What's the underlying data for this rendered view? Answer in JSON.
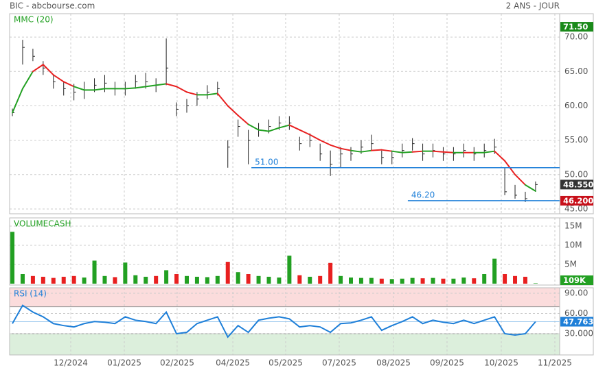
{
  "header": {
    "source": "BIC - abcbourse.com",
    "period": "2 ANS - JOUR"
  },
  "xaxis": {
    "xlim": [
      -0.27,
      53.35
    ],
    "xticks": [
      {
        "value": 5.69,
        "label": "12/2024"
      },
      {
        "value": 10.91,
        "label": "01/2025"
      },
      {
        "value": 16.06,
        "label": "02/2025"
      },
      {
        "value": 21.49,
        "label": "04/2025"
      },
      {
        "value": 26.64,
        "label": "05/2025"
      },
      {
        "value": 31.86,
        "label": "07/2025"
      },
      {
        "value": 37.15,
        "label": "08/2025"
      },
      {
        "value": 42.37,
        "label": "09/2025"
      },
      {
        "value": 47.66,
        "label": "10/2025"
      },
      {
        "value": 52.88,
        "label": "11/2025"
      }
    ]
  },
  "chart_data": [
    {
      "type": "ohlc",
      "color": "#222222",
      "grid": true,
      "ylim": [
        44.3,
        73.4
      ],
      "yticks": [
        {
          "value": 70,
          "label": "70.00"
        },
        {
          "value": 65,
          "label": "65.00"
        },
        {
          "value": 60,
          "label": "60.00"
        },
        {
          "value": 55,
          "label": "55.00"
        },
        {
          "value": 50,
          "label": "50.00"
        },
        {
          "value": 45,
          "label": "45.00"
        }
      ],
      "highs": [
        59.6,
        69.6,
        68.3,
        66.5,
        64.5,
        63.5,
        63.2,
        63.5,
        64.0,
        64.5,
        63.5,
        63.5,
        64.5,
        64.8,
        64.0,
        69.8,
        60.5,
        61.0,
        62.0,
        63.0,
        63.5,
        55.0,
        58.0,
        56.5,
        57.5,
        58.0,
        58.5,
        58.5,
        55.5,
        56.0,
        54.5,
        53.5,
        54.0,
        54.0,
        55.0,
        55.8,
        53.5,
        53.5,
        54.5,
        55.3,
        54.5,
        54.5,
        54.0,
        54.0,
        54.5,
        54.0,
        54.5,
        55.2,
        51.0,
        48.5,
        47.5,
        49.0
      ],
      "lows": [
        58.5,
        66.0,
        66.5,
        64.5,
        62.5,
        61.5,
        60.8,
        61.0,
        62.0,
        62.0,
        61.5,
        61.5,
        62.5,
        62.5,
        62.0,
        63.0,
        58.5,
        59.0,
        60.0,
        61.0,
        61.5,
        51.0,
        55.5,
        51.5,
        55.5,
        56.0,
        56.5,
        56.5,
        53.5,
        54.0,
        52.0,
        49.8,
        51.0,
        52.0,
        53.0,
        53.5,
        51.5,
        51.5,
        52.5,
        53.5,
        52.0,
        52.5,
        52.0,
        52.0,
        52.5,
        52.0,
        52.5,
        53.0,
        47.0,
        46.5,
        46.0,
        47.5
      ],
      "closes": [
        59.0,
        68.5,
        67.2,
        65.5,
        63.5,
        62.5,
        62.0,
        62.3,
        63.0,
        63.3,
        62.5,
        62.5,
        63.5,
        63.5,
        63.0,
        65.5,
        59.5,
        60.0,
        61.0,
        62.0,
        62.5,
        54.0,
        57.0,
        55.0,
        56.5,
        57.0,
        57.5,
        57.5,
        54.5,
        55.0,
        53.0,
        51.5,
        53.0,
        53.0,
        54.0,
        54.5,
        52.5,
        52.5,
        53.5,
        54.5,
        53.0,
        53.5,
        53.0,
        53.0,
        53.5,
        53.0,
        53.5,
        54.0,
        47.5,
        47.0,
        46.5,
        48.55
      ],
      "value_labels": [
        null,
        null,
        null,
        null,
        null,
        null,
        null,
        null,
        null,
        null,
        null,
        null,
        null,
        null,
        null,
        null,
        null,
        null,
        null,
        null,
        null,
        null,
        null,
        null,
        null,
        null,
        null,
        null,
        null,
        null,
        null,
        null,
        null,
        null,
        null,
        null,
        null,
        null,
        null,
        null,
        null,
        null,
        null,
        null,
        null,
        null,
        null,
        null,
        null,
        null,
        null,
        "48.550"
      ],
      "series": [
        {
          "name": "MMC (20)",
          "color_up": "#22a022",
          "color_down": "#e82020",
          "values": [
            59.0,
            62.5,
            65.0,
            66.0,
            64.5,
            63.5,
            62.8,
            62.3,
            62.3,
            62.5,
            62.5,
            62.5,
            62.6,
            62.8,
            63.0,
            63.2,
            62.8,
            62.0,
            61.6,
            61.6,
            61.8,
            60.0,
            58.6,
            57.3,
            56.5,
            56.3,
            56.8,
            57.2,
            56.5,
            55.8,
            55.0,
            54.3,
            53.8,
            53.5,
            53.3,
            53.5,
            53.6,
            53.4,
            53.2,
            53.3,
            53.4,
            53.4,
            53.3,
            53.2,
            53.2,
            53.2,
            53.2,
            53.4,
            52.0,
            50.0,
            48.5,
            47.6
          ]
        }
      ],
      "hlines": [
        {
          "value": 51.0,
          "label": "51.00",
          "x_start": 23.3,
          "color": "#1e7fd8"
        },
        {
          "value": 46.2,
          "label": "46.20",
          "axis_label": "46.200",
          "x_start": 38.55,
          "color": "#1e7fd8"
        }
      ],
      "markers": [
        {
          "value": 71.5,
          "label": "71.50",
          "color": "#1a8a1a"
        }
      ]
    },
    {
      "type": "bar",
      "ylim": [
        0,
        17140000
      ],
      "yticks": [
        {
          "value": 15000000,
          "label": "15M"
        },
        {
          "value": 10000000,
          "label": "10M"
        },
        {
          "value": 5000000,
          "label": "5M"
        }
      ],
      "series": [
        {
          "name": "VOLUMECASH",
          "color_up": "#22a022",
          "color_down": "#e82020",
          "values": [
            13500000,
            2500000,
            2000000,
            1800000,
            1500000,
            1800000,
            2000000,
            1600000,
            6000000,
            2000000,
            1700000,
            5500000,
            2200000,
            1800000,
            2000000,
            3500000,
            2500000,
            2000000,
            1800000,
            1700000,
            2000000,
            5700000,
            3000000,
            2500000,
            2000000,
            1800000,
            1600000,
            7300000,
            2200000,
            1800000,
            2000000,
            5400000,
            2000000,
            1600000,
            1500000,
            1500000,
            1300000,
            1200000,
            1300000,
            1500000,
            1400000,
            1500000,
            1300000,
            1300000,
            1600000,
            1400000,
            2500000,
            6500000,
            2500000,
            2000000,
            1800000,
            109000
          ],
          "value_labels": [
            null,
            null,
            null,
            null,
            null,
            null,
            null,
            null,
            null,
            null,
            null,
            null,
            null,
            null,
            null,
            null,
            null,
            null,
            null,
            null,
            null,
            null,
            null,
            null,
            null,
            null,
            null,
            null,
            null,
            null,
            null,
            null,
            null,
            null,
            null,
            null,
            null,
            null,
            null,
            null,
            null,
            null,
            null,
            null,
            null,
            null,
            null,
            null,
            null,
            null,
            null,
            "109K"
          ]
        }
      ]
    },
    {
      "type": "line",
      "ylim": [
        -1.5,
        98.1
      ],
      "overbought": 70,
      "oversold": 30,
      "yticks": [
        {
          "value": 90,
          "label": "90.00"
        },
        {
          "value": 60,
          "label": "60.00"
        },
        {
          "value": 30,
          "label": "30.000"
        }
      ],
      "series": [
        {
          "name": "RSI (14)",
          "color": "#1e7fd8",
          "values": [
            45,
            72,
            62,
            55,
            45,
            42,
            40,
            45,
            48,
            47,
            45,
            55,
            50,
            48,
            45,
            62,
            30,
            32,
            45,
            50,
            55,
            25,
            42,
            32,
            50,
            53,
            55,
            52,
            40,
            42,
            40,
            32,
            45,
            46,
            50,
            55,
            35,
            42,
            48,
            55,
            45,
            50,
            47,
            45,
            50,
            45,
            50,
            55,
            30,
            28,
            30,
            47.763
          ],
          "value_labels": [
            null,
            null,
            null,
            null,
            null,
            null,
            null,
            null,
            null,
            null,
            null,
            null,
            null,
            null,
            null,
            null,
            null,
            null,
            null,
            null,
            null,
            null,
            null,
            null,
            null,
            null,
            null,
            null,
            null,
            null,
            null,
            null,
            null,
            null,
            null,
            null,
            null,
            null,
            null,
            null,
            null,
            null,
            null,
            null,
            null,
            null,
            null,
            null,
            null,
            null,
            null,
            "47.763"
          ]
        }
      ]
    }
  ]
}
